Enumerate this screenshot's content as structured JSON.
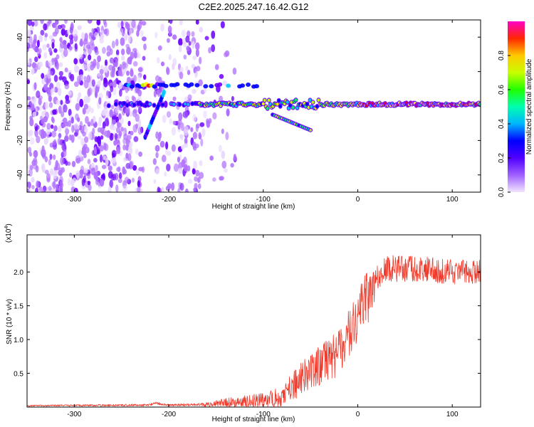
{
  "title": "C2E2.2025.247.16.42.G12",
  "chart_data": [
    {
      "type": "heatmap",
      "xlabel": "Height of straight line (km)",
      "ylabel": "Frequency (Hz)",
      "xlim": [
        -350,
        130
      ],
      "ylim": [
        -50,
        50
      ],
      "xticks": [
        -300,
        -200,
        -100,
        0,
        100
      ],
      "xtick_labels": [
        "-300",
        "-200",
        "-100",
        "0",
        "100"
      ],
      "yticks": [
        -40,
        -20,
        0,
        20,
        40
      ],
      "ytick_labels": [
        "-40",
        "-20",
        "0",
        "20",
        "40"
      ],
      "colorbar": {
        "label": "Normalized spectral amplitude",
        "range": [
          0,
          1
        ],
        "ticks": [
          0.0,
          0.2,
          0.4,
          0.6,
          0.8
        ],
        "tick_labels": [
          "0.0",
          "0.2",
          "0.4",
          "0.6",
          "0.8"
        ],
        "colors": [
          "#e8d7ff",
          "#b070ff",
          "#6a00ff",
          "#0000ff",
          "#00c8ff",
          "#00ff60",
          "#c8ff00",
          "#ffff00",
          "#ff8000",
          "#ff0000",
          "#ff00ff"
        ]
      },
      "features": [
        {
          "name": "upper line",
          "x_range": [
            -245,
            -100
          ],
          "frequency": 12
        },
        {
          "name": "main line",
          "x_range": [
            -265,
            130
          ],
          "frequency": 1
        },
        {
          "name": "descending streak",
          "x_range": [
            -90,
            -50
          ],
          "frequency_range": [
            -5,
            -14
          ]
        },
        {
          "name": "steep streak",
          "x_range": [
            -225,
            -205
          ],
          "frequency_range": [
            -18,
            8
          ]
        },
        {
          "name": "noise region",
          "x_range": [
            -350,
            -160
          ],
          "frequency_range": [
            -50,
            50
          ]
        }
      ]
    },
    {
      "type": "line",
      "xlabel": "Height of straight line (km)",
      "ylabel": "SNR (10 * v/v)",
      "yscale_label": "(x10",
      "yscale_exponent": "4",
      "yscale_suffix": ")",
      "xlim": [
        -350,
        130
      ],
      "ylim": [
        0,
        2.55
      ],
      "xticks": [
        -300,
        -200,
        -100,
        0,
        100
      ],
      "xtick_labels": [
        "-300",
        "-200",
        "-100",
        "0",
        "100"
      ],
      "yticks": [
        0.5,
        1.0,
        1.5,
        2.0
      ],
      "ytick_labels": [
        "0.5",
        "1.0",
        "1.5",
        "2.0"
      ],
      "color": "#ef3b2c",
      "trend": {
        "x": [
          -350,
          -220,
          -215,
          -200,
          -160,
          -120,
          -100,
          -80,
          -60,
          -40,
          -25,
          -10,
          0,
          10,
          20,
          30,
          60,
          100,
          130
        ],
        "y": [
          0.02,
          0.03,
          0.06,
          0.03,
          0.04,
          0.08,
          0.12,
          0.15,
          0.4,
          0.62,
          0.75,
          1.05,
          1.3,
          1.6,
          1.9,
          2.05,
          2.05,
          2.0,
          2.0
        ]
      },
      "noise_amplitude": {
        "x": [
          -350,
          -170,
          -140,
          -90,
          -65,
          -40,
          0,
          10,
          20,
          130
        ],
        "y": [
          0.01,
          0.02,
          0.07,
          0.13,
          0.25,
          0.3,
          0.4,
          0.45,
          0.2,
          0.18
        ]
      }
    }
  ]
}
